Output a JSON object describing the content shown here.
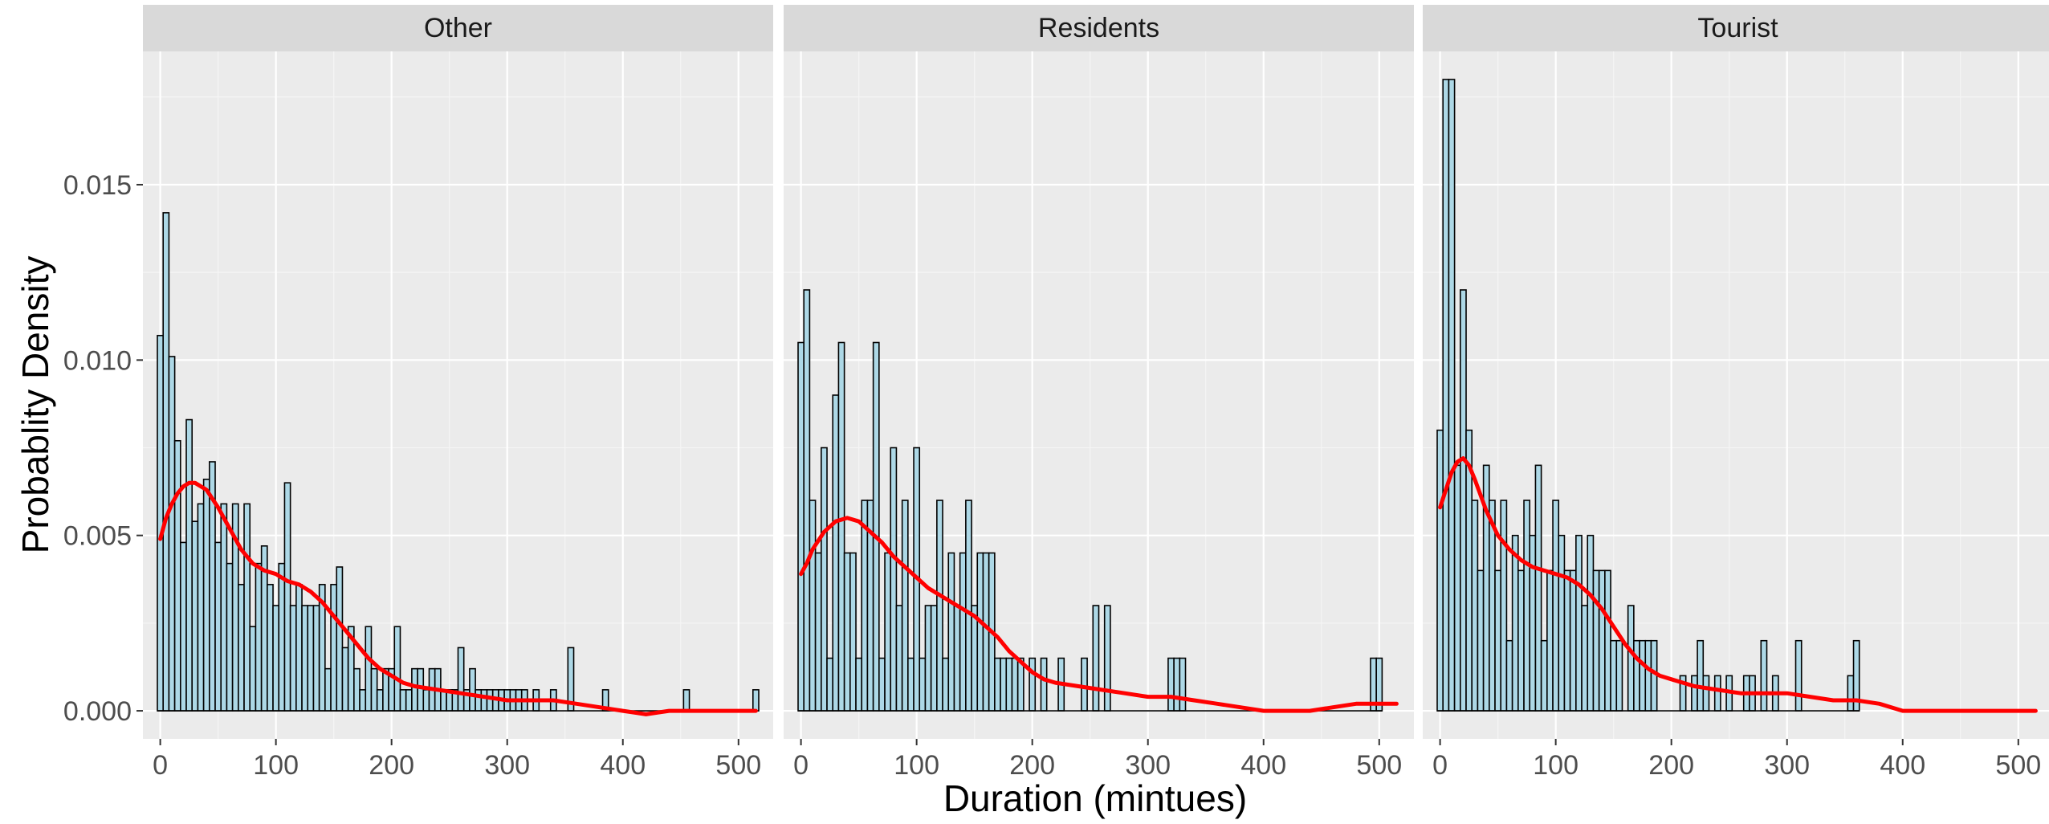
{
  "chart_data": {
    "type": "bar",
    "facet_layout": "1 row x 3 panels, shared axes",
    "xlabel": "Duration (mintues)",
    "ylabel": "Probablity Density",
    "xlim": [
      -15,
      530
    ],
    "ylim": [
      -0.0008,
      0.0188
    ],
    "x_ticks": [
      0,
      100,
      200,
      300,
      400,
      500
    ],
    "x_tick_labels": [
      "0",
      "100",
      "200",
      "300",
      "400",
      "500"
    ],
    "y_ticks": [
      0.0,
      0.005,
      0.01,
      0.015
    ],
    "y_tick_labels": [
      "0.000",
      "0.005",
      "0.010",
      "0.015"
    ],
    "bin_width": 5,
    "grid": true,
    "colors": {
      "panel_background": "#ebebeb",
      "strip_background": "#d9d9d9",
      "grid_major": "#ffffff",
      "bar_fill": "#add8e6",
      "bar_outline": "#000000",
      "density_line": "#ff0000",
      "axis_text": "#4d4d4d",
      "title_text": "#000000"
    },
    "panels": [
      {
        "strip_label": "Other",
        "histogram": [
          [
            0,
            0.0107
          ],
          [
            5,
            0.0142
          ],
          [
            10,
            0.0101
          ],
          [
            15,
            0.0077
          ],
          [
            20,
            0.0048
          ],
          [
            25,
            0.0083
          ],
          [
            30,
            0.0054
          ],
          [
            35,
            0.0059
          ],
          [
            40,
            0.0066
          ],
          [
            45,
            0.0071
          ],
          [
            50,
            0.0048
          ],
          [
            55,
            0.0059
          ],
          [
            60,
            0.0042
          ],
          [
            65,
            0.0059
          ],
          [
            70,
            0.0036
          ],
          [
            75,
            0.0059
          ],
          [
            80,
            0.0024
          ],
          [
            85,
            0.0042
          ],
          [
            90,
            0.0047
          ],
          [
            95,
            0.0036
          ],
          [
            100,
            0.003
          ],
          [
            105,
            0.0042
          ],
          [
            110,
            0.0065
          ],
          [
            115,
            0.003
          ],
          [
            120,
            0.0036
          ],
          [
            125,
            0.003
          ],
          [
            130,
            0.003
          ],
          [
            135,
            0.003
          ],
          [
            140,
            0.0036
          ],
          [
            145,
            0.0012
          ],
          [
            150,
            0.0036
          ],
          [
            155,
            0.0041
          ],
          [
            160,
            0.0018
          ],
          [
            165,
            0.0024
          ],
          [
            170,
            0.0012
          ],
          [
            175,
            0.0006
          ],
          [
            180,
            0.0024
          ],
          [
            185,
            0.0012
          ],
          [
            190,
            0.0006
          ],
          [
            195,
            0.0012
          ],
          [
            200,
            0.0012
          ],
          [
            205,
            0.0024
          ],
          [
            210,
            0.0006
          ],
          [
            215,
            0.0006
          ],
          [
            220,
            0.0012
          ],
          [
            225,
            0.0012
          ],
          [
            230,
            0.0006
          ],
          [
            235,
            0.0012
          ],
          [
            240,
            0.0012
          ],
          [
            245,
            0.0006
          ],
          [
            250,
            0.0006
          ],
          [
            255,
            0.0006
          ],
          [
            260,
            0.0018
          ],
          [
            265,
            0.0006
          ],
          [
            270,
            0.0012
          ],
          [
            275,
            0.0006
          ],
          [
            280,
            0.0006
          ],
          [
            285,
            0.0006
          ],
          [
            290,
            0.0006
          ],
          [
            295,
            0.0006
          ],
          [
            300,
            0.0006
          ],
          [
            305,
            0.0006
          ],
          [
            310,
            0.0006
          ],
          [
            315,
            0.0006
          ],
          [
            325,
            0.0006
          ],
          [
            340,
            0.0006
          ],
          [
            355,
            0.0018
          ],
          [
            385,
            0.0006
          ],
          [
            455,
            0.0006
          ],
          [
            515,
            0.0006
          ]
        ],
        "density": [
          [
            0,
            0.0049
          ],
          [
            5,
            0.0055
          ],
          [
            10,
            0.0059
          ],
          [
            15,
            0.0062
          ],
          [
            20,
            0.0064
          ],
          [
            25,
            0.0065
          ],
          [
            30,
            0.0065
          ],
          [
            40,
            0.0063
          ],
          [
            50,
            0.0058
          ],
          [
            60,
            0.0052
          ],
          [
            70,
            0.0046
          ],
          [
            80,
            0.0042
          ],
          [
            90,
            0.004
          ],
          [
            100,
            0.0039
          ],
          [
            110,
            0.0037
          ],
          [
            120,
            0.0036
          ],
          [
            130,
            0.0034
          ],
          [
            140,
            0.0031
          ],
          [
            150,
            0.0027
          ],
          [
            160,
            0.0023
          ],
          [
            170,
            0.0019
          ],
          [
            180,
            0.0015
          ],
          [
            190,
            0.0012
          ],
          [
            200,
            0.001
          ],
          [
            210,
            0.0008
          ],
          [
            220,
            0.0007
          ],
          [
            240,
            0.0006
          ],
          [
            260,
            0.0005
          ],
          [
            280,
            0.0004
          ],
          [
            300,
            0.0003
          ],
          [
            320,
            0.0003
          ],
          [
            340,
            0.0003
          ],
          [
            360,
            0.0002
          ],
          [
            380,
            0.0001
          ],
          [
            400,
            0.0
          ],
          [
            420,
            -0.0001
          ],
          [
            440,
            0.0
          ],
          [
            460,
            0.0
          ],
          [
            480,
            0.0
          ],
          [
            500,
            0.0
          ],
          [
            515,
            0.0
          ]
        ]
      },
      {
        "strip_label": "Residents",
        "histogram": [
          [
            0,
            0.0105
          ],
          [
            5,
            0.012
          ],
          [
            10,
            0.006
          ],
          [
            15,
            0.0045
          ],
          [
            20,
            0.0075
          ],
          [
            25,
            0.0015
          ],
          [
            30,
            0.009
          ],
          [
            35,
            0.0105
          ],
          [
            40,
            0.0045
          ],
          [
            45,
            0.0045
          ],
          [
            50,
            0.0015
          ],
          [
            55,
            0.006
          ],
          [
            60,
            0.006
          ],
          [
            65,
            0.0105
          ],
          [
            70,
            0.0015
          ],
          [
            75,
            0.0045
          ],
          [
            80,
            0.0075
          ],
          [
            85,
            0.003
          ],
          [
            90,
            0.006
          ],
          [
            95,
            0.0015
          ],
          [
            100,
            0.0075
          ],
          [
            105,
            0.0015
          ],
          [
            110,
            0.003
          ],
          [
            115,
            0.003
          ],
          [
            120,
            0.006
          ],
          [
            125,
            0.0015
          ],
          [
            130,
            0.0045
          ],
          [
            135,
            0.003
          ],
          [
            140,
            0.0045
          ],
          [
            145,
            0.006
          ],
          [
            150,
            0.003
          ],
          [
            155,
            0.0045
          ],
          [
            160,
            0.0045
          ],
          [
            165,
            0.0045
          ],
          [
            170,
            0.0015
          ],
          [
            175,
            0.0015
          ],
          [
            180,
            0.0015
          ],
          [
            185,
            0.0015
          ],
          [
            190,
            0.0015
          ],
          [
            200,
            0.0015
          ],
          [
            210,
            0.0015
          ],
          [
            225,
            0.0015
          ],
          [
            245,
            0.0015
          ],
          [
            255,
            0.003
          ],
          [
            265,
            0.003
          ],
          [
            320,
            0.0015
          ],
          [
            325,
            0.0015
          ],
          [
            330,
            0.0015
          ],
          [
            495,
            0.0015
          ],
          [
            500,
            0.0015
          ]
        ],
        "density": [
          [
            0,
            0.0039
          ],
          [
            5,
            0.0042
          ],
          [
            10,
            0.0046
          ],
          [
            20,
            0.0051
          ],
          [
            30,
            0.0054
          ],
          [
            40,
            0.0055
          ],
          [
            50,
            0.0054
          ],
          [
            60,
            0.0051
          ],
          [
            70,
            0.0048
          ],
          [
            80,
            0.0044
          ],
          [
            90,
            0.0041
          ],
          [
            100,
            0.0038
          ],
          [
            110,
            0.0035
          ],
          [
            120,
            0.0033
          ],
          [
            130,
            0.0031
          ],
          [
            140,
            0.0029
          ],
          [
            150,
            0.0027
          ],
          [
            160,
            0.0024
          ],
          [
            170,
            0.0021
          ],
          [
            180,
            0.0017
          ],
          [
            190,
            0.0014
          ],
          [
            200,
            0.0011
          ],
          [
            210,
            0.0009
          ],
          [
            220,
            0.0008
          ],
          [
            240,
            0.0007
          ],
          [
            260,
            0.0006
          ],
          [
            280,
            0.0005
          ],
          [
            300,
            0.0004
          ],
          [
            320,
            0.0004
          ],
          [
            340,
            0.0003
          ],
          [
            360,
            0.0002
          ],
          [
            380,
            0.0001
          ],
          [
            400,
            0.0
          ],
          [
            420,
            0.0
          ],
          [
            440,
            0.0
          ],
          [
            460,
            0.0001
          ],
          [
            480,
            0.0002
          ],
          [
            500,
            0.0002
          ],
          [
            515,
            0.0002
          ]
        ]
      },
      {
        "strip_label": "Tourist",
        "histogram": [
          [
            0,
            0.008
          ],
          [
            5,
            0.018
          ],
          [
            10,
            0.018
          ],
          [
            15,
            0.007
          ],
          [
            20,
            0.012
          ],
          [
            25,
            0.008
          ],
          [
            30,
            0.006
          ],
          [
            35,
            0.004
          ],
          [
            40,
            0.007
          ],
          [
            45,
            0.006
          ],
          [
            50,
            0.004
          ],
          [
            55,
            0.006
          ],
          [
            60,
            0.002
          ],
          [
            65,
            0.005
          ],
          [
            70,
            0.004
          ],
          [
            75,
            0.006
          ],
          [
            80,
            0.005
          ],
          [
            85,
            0.007
          ],
          [
            90,
            0.002
          ],
          [
            95,
            0.004
          ],
          [
            100,
            0.006
          ],
          [
            105,
            0.005
          ],
          [
            110,
            0.004
          ],
          [
            115,
            0.004
          ],
          [
            120,
            0.005
          ],
          [
            125,
            0.003
          ],
          [
            130,
            0.005
          ],
          [
            135,
            0.004
          ],
          [
            140,
            0.004
          ],
          [
            145,
            0.004
          ],
          [
            150,
            0.002
          ],
          [
            155,
            0.002
          ],
          [
            165,
            0.003
          ],
          [
            170,
            0.002
          ],
          [
            175,
            0.002
          ],
          [
            180,
            0.002
          ],
          [
            185,
            0.002
          ],
          [
            210,
            0.001
          ],
          [
            220,
            0.001
          ],
          [
            225,
            0.002
          ],
          [
            230,
            0.001
          ],
          [
            240,
            0.001
          ],
          [
            250,
            0.001
          ],
          [
            265,
            0.001
          ],
          [
            270,
            0.001
          ],
          [
            280,
            0.002
          ],
          [
            290,
            0.001
          ],
          [
            310,
            0.002
          ],
          [
            355,
            0.001
          ],
          [
            360,
            0.002
          ]
        ],
        "density": [
          [
            0,
            0.0058
          ],
          [
            5,
            0.0063
          ],
          [
            10,
            0.0068
          ],
          [
            15,
            0.0071
          ],
          [
            20,
            0.0072
          ],
          [
            25,
            0.007
          ],
          [
            30,
            0.0066
          ],
          [
            40,
            0.0057
          ],
          [
            50,
            0.005
          ],
          [
            60,
            0.0046
          ],
          [
            70,
            0.0043
          ],
          [
            80,
            0.0041
          ],
          [
            90,
            0.004
          ],
          [
            100,
            0.0039
          ],
          [
            110,
            0.0038
          ],
          [
            120,
            0.0036
          ],
          [
            130,
            0.0033
          ],
          [
            140,
            0.0029
          ],
          [
            150,
            0.0024
          ],
          [
            160,
            0.0019
          ],
          [
            170,
            0.0015
          ],
          [
            180,
            0.0012
          ],
          [
            190,
            0.001
          ],
          [
            200,
            0.0009
          ],
          [
            210,
            0.0008
          ],
          [
            220,
            0.0007
          ],
          [
            240,
            0.0006
          ],
          [
            260,
            0.0005
          ],
          [
            280,
            0.0005
          ],
          [
            300,
            0.0005
          ],
          [
            320,
            0.0004
          ],
          [
            340,
            0.0003
          ],
          [
            360,
            0.0003
          ],
          [
            380,
            0.0002
          ],
          [
            400,
            0.0
          ],
          [
            420,
            0.0
          ],
          [
            440,
            0.0
          ],
          [
            460,
            0.0
          ],
          [
            480,
            0.0
          ],
          [
            500,
            0.0
          ],
          [
            515,
            0.0
          ]
        ]
      }
    ]
  }
}
